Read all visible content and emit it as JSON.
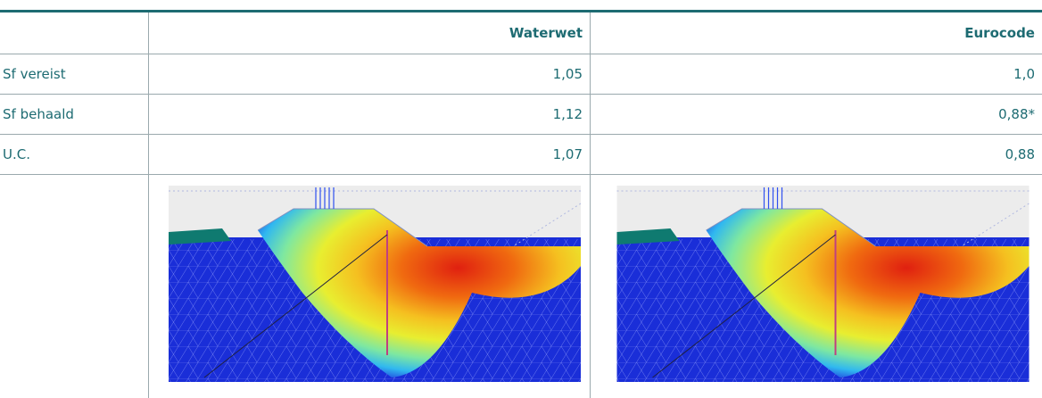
{
  "table": {
    "columns": [
      "Waterwet",
      "Eurocode"
    ],
    "rows": [
      [
        "Sf vereist",
        "1,05",
        "1,0"
      ],
      [
        "Sf behaald",
        "1,12",
        "0,88*"
      ],
      [
        "U.C.",
        "1,07",
        "0,88"
      ]
    ]
  }
}
